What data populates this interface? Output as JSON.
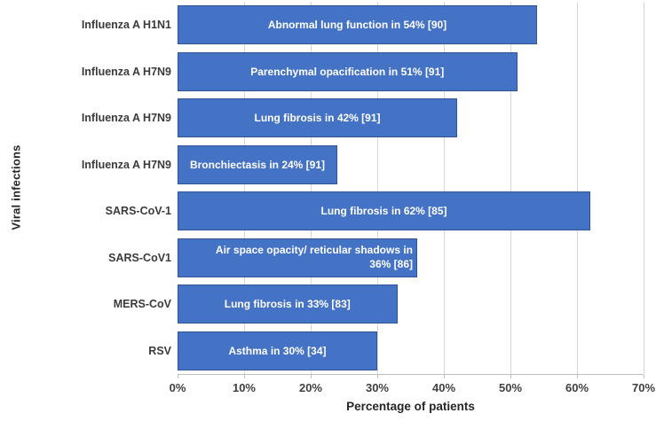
{
  "chart_data": {
    "type": "bar",
    "orientation": "horizontal",
    "title": "",
    "xlabel": "Percentage of patients",
    "ylabel": "Viral infections",
    "xlim": [
      0,
      70
    ],
    "xticks": [
      "0%",
      "10%",
      "20%",
      "30%",
      "40%",
      "50%",
      "60%",
      "70%"
    ],
    "grid": true,
    "legend": false,
    "categories": [
      "Influenza A H1N1",
      "Influenza A H7N9",
      "Influenza A H7N9",
      "Influenza A H7N9",
      "SARS-CoV-1",
      "SARS-CoV1",
      "MERS-CoV",
      "RSV"
    ],
    "values": [
      54,
      51,
      42,
      24,
      62,
      36,
      33,
      30
    ],
    "bar_labels": [
      "Abnormal lung function in 54% [90]",
      "Parenchymal opacification in 51% [91]",
      "Lung fibrosis in 42% [91]",
      "Bronchiectasis in 24% [91]",
      "Lung fibrosis in 62% [85]",
      [
        "Air space opacity/ reticular shadows in",
        "36% [86]"
      ],
      "Lung fibrosis in 33% [83]",
      "Asthma in 30% [34]"
    ],
    "bar_color": "#4472c4",
    "bar_border_color": "#2f5597",
    "gridline_color": "#d6d6d6",
    "axis_line_color": "#bfbfbf"
  }
}
